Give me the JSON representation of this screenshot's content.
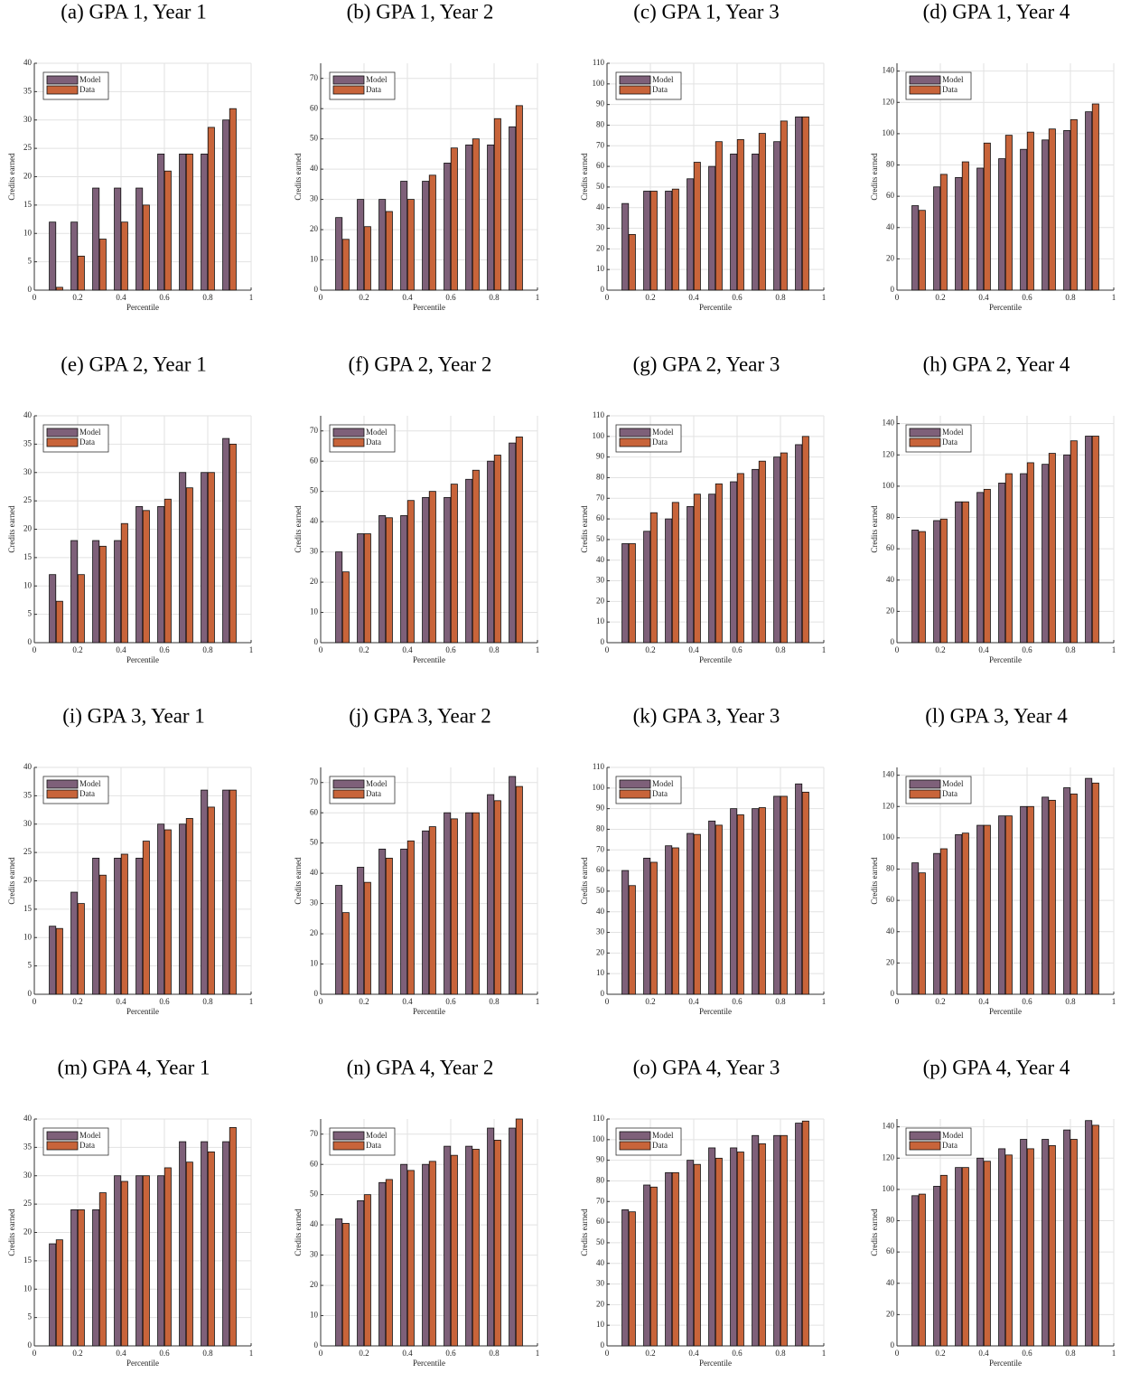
{
  "chart_data": [
    {
      "type": "bar",
      "title": "(a) GPA 1, Year 1",
      "xlabel": "Percentile",
      "ylabel": "Credits earned",
      "x": [
        0.1,
        0.2,
        0.3,
        0.4,
        0.5,
        0.6,
        0.7,
        0.8,
        0.9
      ],
      "series": [
        {
          "name": "Model",
          "color": "#7e6079",
          "values": [
            12,
            12,
            18,
            18,
            18,
            24,
            24,
            24,
            30
          ]
        },
        {
          "name": "Data",
          "color": "#c8643a",
          "values": [
            0.5,
            6,
            9,
            12,
            15,
            21,
            24,
            28.7,
            32
          ]
        }
      ],
      "xlim": [
        0,
        1
      ],
      "xticks": [
        0,
        0.2,
        0.4,
        0.6,
        0.8,
        1
      ],
      "ylim": [
        0,
        40
      ],
      "yticks": [
        0,
        5,
        10,
        15,
        20,
        25,
        30,
        35,
        40
      ],
      "grid": true,
      "legend": "upper left"
    },
    {
      "type": "bar",
      "title": "(b) GPA 1, Year 2",
      "xlabel": "Percentile",
      "ylabel": "Credits earned",
      "x": [
        0.1,
        0.2,
        0.3,
        0.4,
        0.5,
        0.6,
        0.7,
        0.8,
        0.9
      ],
      "series": [
        {
          "name": "Model",
          "color": "#7e6079",
          "values": [
            24,
            30,
            30,
            36,
            36,
            42,
            48,
            48,
            54
          ]
        },
        {
          "name": "Data",
          "color": "#c8643a",
          "values": [
            16.8,
            21,
            26,
            30,
            38,
            47,
            50,
            56.7,
            61
          ]
        }
      ],
      "xlim": [
        0,
        1
      ],
      "xticks": [
        0,
        0.2,
        0.4,
        0.6,
        0.8,
        1
      ],
      "ylim": [
        0,
        75
      ],
      "yticks": [
        0,
        10,
        20,
        30,
        40,
        50,
        60,
        70
      ],
      "grid": true,
      "legend": "upper left"
    },
    {
      "type": "bar",
      "title": "(c) GPA 1, Year 3",
      "xlabel": "Percentile",
      "ylabel": "Credits earned",
      "x": [
        0.1,
        0.2,
        0.3,
        0.4,
        0.5,
        0.6,
        0.7,
        0.8,
        0.9
      ],
      "series": [
        {
          "name": "Model",
          "color": "#7e6079",
          "values": [
            42,
            48,
            48,
            54,
            60,
            66,
            66,
            72,
            84
          ]
        },
        {
          "name": "Data",
          "color": "#c8643a",
          "values": [
            27,
            48,
            49,
            62,
            72,
            73,
            76,
            82,
            84
          ]
        }
      ],
      "xlim": [
        0,
        1
      ],
      "xticks": [
        0,
        0.2,
        0.4,
        0.6,
        0.8,
        1
      ],
      "ylim": [
        0,
        110
      ],
      "yticks": [
        0,
        10,
        20,
        30,
        40,
        50,
        60,
        70,
        80,
        90,
        100,
        110
      ],
      "grid": true,
      "legend": "upper left"
    },
    {
      "type": "bar",
      "title": "(d) GPA 1, Year 4",
      "xlabel": "Percentile",
      "ylabel": "Credits earned",
      "x": [
        0.1,
        0.2,
        0.3,
        0.4,
        0.5,
        0.6,
        0.7,
        0.8,
        0.9
      ],
      "series": [
        {
          "name": "Model",
          "color": "#7e6079",
          "values": [
            54,
            66,
            72,
            78,
            84,
            90,
            96,
            102,
            114
          ]
        },
        {
          "name": "Data",
          "color": "#c8643a",
          "values": [
            51,
            74,
            82,
            94,
            99,
            101,
            103,
            109,
            119
          ]
        }
      ],
      "xlim": [
        0,
        1
      ],
      "xticks": [
        0,
        0.2,
        0.4,
        0.6,
        0.8,
        1
      ],
      "ylim": [
        0,
        145
      ],
      "yticks": [
        0,
        20,
        40,
        60,
        80,
        100,
        120,
        140
      ],
      "grid": true,
      "legend": "upper left"
    },
    {
      "type": "bar",
      "title": "(e) GPA 2, Year 1",
      "xlabel": "Percentile",
      "ylabel": "Credits earned",
      "x": [
        0.1,
        0.2,
        0.3,
        0.4,
        0.5,
        0.6,
        0.7,
        0.8,
        0.9
      ],
      "series": [
        {
          "name": "Model",
          "color": "#7e6079",
          "values": [
            12,
            18,
            18,
            18,
            24,
            24,
            30,
            30,
            36
          ]
        },
        {
          "name": "Data",
          "color": "#c8643a",
          "values": [
            7.3,
            12,
            17,
            21,
            23.3,
            25.3,
            27.3,
            30,
            35
          ]
        }
      ],
      "xlim": [
        0,
        1
      ],
      "xticks": [
        0,
        0.2,
        0.4,
        0.6,
        0.8,
        1
      ],
      "ylim": [
        0,
        40
      ],
      "yticks": [
        0,
        5,
        10,
        15,
        20,
        25,
        30,
        35,
        40
      ],
      "grid": true,
      "legend": "upper left"
    },
    {
      "type": "bar",
      "title": "(f) GPA 2, Year 2",
      "xlabel": "Percentile",
      "ylabel": "Credits earned",
      "x": [
        0.1,
        0.2,
        0.3,
        0.4,
        0.5,
        0.6,
        0.7,
        0.8,
        0.9
      ],
      "series": [
        {
          "name": "Model",
          "color": "#7e6079",
          "values": [
            30,
            36,
            42,
            42,
            48,
            48,
            54,
            60,
            66
          ]
        },
        {
          "name": "Data",
          "color": "#c8643a",
          "values": [
            23.4,
            36,
            41.3,
            47,
            50,
            52.4,
            57,
            62,
            68
          ]
        }
      ],
      "xlim": [
        0,
        1
      ],
      "xticks": [
        0,
        0.2,
        0.4,
        0.6,
        0.8,
        1
      ],
      "ylim": [
        0,
        75
      ],
      "yticks": [
        0,
        10,
        20,
        30,
        40,
        50,
        60,
        70
      ],
      "grid": true,
      "legend": "upper left"
    },
    {
      "type": "bar",
      "title": "(g) GPA 2, Year 3",
      "xlabel": "Percentile",
      "ylabel": "Credits earned",
      "x": [
        0.1,
        0.2,
        0.3,
        0.4,
        0.5,
        0.6,
        0.7,
        0.8,
        0.9
      ],
      "series": [
        {
          "name": "Model",
          "color": "#7e6079",
          "values": [
            48,
            54,
            60,
            66,
            72,
            78,
            84,
            90,
            96
          ]
        },
        {
          "name": "Data",
          "color": "#c8643a",
          "values": [
            48,
            63,
            68,
            72,
            77,
            82,
            88,
            92,
            100
          ]
        }
      ],
      "xlim": [
        0,
        1
      ],
      "xticks": [
        0,
        0.2,
        0.4,
        0.6,
        0.8,
        1
      ],
      "ylim": [
        0,
        110
      ],
      "yticks": [
        0,
        10,
        20,
        30,
        40,
        50,
        60,
        70,
        80,
        90,
        100,
        110
      ],
      "grid": true,
      "legend": "upper left"
    },
    {
      "type": "bar",
      "title": "(h) GPA 2, Year 4",
      "xlabel": "Percentile",
      "ylabel": "Credits earned",
      "x": [
        0.1,
        0.2,
        0.3,
        0.4,
        0.5,
        0.6,
        0.7,
        0.8,
        0.9
      ],
      "series": [
        {
          "name": "Model",
          "color": "#7e6079",
          "values": [
            72,
            78,
            90,
            96,
            102,
            108,
            114,
            120,
            132
          ]
        },
        {
          "name": "Data",
          "color": "#c8643a",
          "values": [
            71,
            79,
            90,
            98,
            108,
            115,
            121,
            129,
            132
          ]
        }
      ],
      "xlim": [
        0,
        1
      ],
      "xticks": [
        0,
        0.2,
        0.4,
        0.6,
        0.8,
        1
      ],
      "ylim": [
        0,
        145
      ],
      "yticks": [
        0,
        20,
        40,
        60,
        80,
        100,
        120,
        140
      ],
      "grid": true,
      "legend": "upper left"
    },
    {
      "type": "bar",
      "title": "(i) GPA 3, Year 1",
      "xlabel": "Percentile",
      "ylabel": "Credits earned",
      "x": [
        0.1,
        0.2,
        0.3,
        0.4,
        0.5,
        0.6,
        0.7,
        0.8,
        0.9
      ],
      "series": [
        {
          "name": "Model",
          "color": "#7e6079",
          "values": [
            12,
            18,
            24,
            24,
            24,
            30,
            30,
            36,
            36
          ]
        },
        {
          "name": "Data",
          "color": "#c8643a",
          "values": [
            11.6,
            16,
            21,
            24.7,
            27,
            29,
            31,
            33,
            36
          ]
        }
      ],
      "xlim": [
        0,
        1
      ],
      "xticks": [
        0,
        0.2,
        0.4,
        0.6,
        0.8,
        1
      ],
      "ylim": [
        0,
        40
      ],
      "yticks": [
        0,
        5,
        10,
        15,
        20,
        25,
        30,
        35,
        40
      ],
      "grid": true,
      "legend": "upper left"
    },
    {
      "type": "bar",
      "title": "(j) GPA 3, Year 2",
      "xlabel": "Percentile",
      "ylabel": "Credits earned",
      "x": [
        0.1,
        0.2,
        0.3,
        0.4,
        0.5,
        0.6,
        0.7,
        0.8,
        0.9
      ],
      "series": [
        {
          "name": "Model",
          "color": "#7e6079",
          "values": [
            36,
            42,
            48,
            48,
            54,
            60,
            60,
            66,
            72
          ]
        },
        {
          "name": "Data",
          "color": "#c8643a",
          "values": [
            27,
            37,
            45,
            50.7,
            55.4,
            58,
            60,
            64,
            68.7
          ]
        }
      ],
      "xlim": [
        0,
        1
      ],
      "xticks": [
        0,
        0.2,
        0.4,
        0.6,
        0.8,
        1
      ],
      "ylim": [
        0,
        75
      ],
      "yticks": [
        0,
        10,
        20,
        30,
        40,
        50,
        60,
        70
      ],
      "grid": true,
      "legend": "upper left"
    },
    {
      "type": "bar",
      "title": "(k) GPA 3, Year 3",
      "xlabel": "Percentile",
      "ylabel": "Credits earned",
      "x": [
        0.1,
        0.2,
        0.3,
        0.4,
        0.5,
        0.6,
        0.7,
        0.8,
        0.9
      ],
      "series": [
        {
          "name": "Model",
          "color": "#7e6079",
          "values": [
            60,
            66,
            72,
            78,
            84,
            90,
            90,
            96,
            102
          ]
        },
        {
          "name": "Data",
          "color": "#c8643a",
          "values": [
            52.7,
            64,
            71,
            77.5,
            82,
            87,
            90.5,
            96,
            98
          ]
        }
      ],
      "xlim": [
        0,
        1
      ],
      "xticks": [
        0,
        0.2,
        0.4,
        0.6,
        0.8,
        1
      ],
      "ylim": [
        0,
        110
      ],
      "yticks": [
        0,
        10,
        20,
        30,
        40,
        50,
        60,
        70,
        80,
        90,
        100,
        110
      ],
      "grid": true,
      "legend": "upper left"
    },
    {
      "type": "bar",
      "title": "(l) GPA 3, Year 4",
      "xlabel": "Percentile",
      "ylabel": "Credits earned",
      "x": [
        0.1,
        0.2,
        0.3,
        0.4,
        0.5,
        0.6,
        0.7,
        0.8,
        0.9
      ],
      "series": [
        {
          "name": "Model",
          "color": "#7e6079",
          "values": [
            84,
            90,
            102,
            108,
            114,
            120,
            126,
            132,
            138
          ]
        },
        {
          "name": "Data",
          "color": "#c8643a",
          "values": [
            77.6,
            93,
            103,
            108,
            114,
            120,
            124,
            128,
            135
          ]
        }
      ],
      "xlim": [
        0,
        1
      ],
      "xticks": [
        0,
        0.2,
        0.4,
        0.6,
        0.8,
        1
      ],
      "ylim": [
        0,
        145
      ],
      "yticks": [
        0,
        20,
        40,
        60,
        80,
        100,
        120,
        140
      ],
      "grid": true,
      "legend": "upper left"
    },
    {
      "type": "bar",
      "title": "(m) GPA 4, Year 1",
      "xlabel": "Percentile",
      "ylabel": "Credits earned",
      "x": [
        0.1,
        0.2,
        0.3,
        0.4,
        0.5,
        0.6,
        0.7,
        0.8,
        0.9
      ],
      "series": [
        {
          "name": "Model",
          "color": "#7e6079",
          "values": [
            18,
            24,
            24,
            30,
            30,
            30,
            36,
            36,
            36
          ]
        },
        {
          "name": "Data",
          "color": "#c8643a",
          "values": [
            18.7,
            24,
            27,
            29,
            30,
            31.4,
            32.4,
            34.2,
            38.5
          ]
        }
      ],
      "xlim": [
        0,
        1
      ],
      "xticks": [
        0,
        0.2,
        0.4,
        0.6,
        0.8,
        1
      ],
      "ylim": [
        0,
        40
      ],
      "yticks": [
        0,
        5,
        10,
        15,
        20,
        25,
        30,
        35,
        40
      ],
      "grid": true,
      "legend": "upper left"
    },
    {
      "type": "bar",
      "title": "(n) GPA 4, Year 2",
      "xlabel": "Percentile",
      "ylabel": "Credits earned",
      "x": [
        0.1,
        0.2,
        0.3,
        0.4,
        0.5,
        0.6,
        0.7,
        0.8,
        0.9
      ],
      "series": [
        {
          "name": "Model",
          "color": "#7e6079",
          "values": [
            42,
            48,
            54,
            60,
            60,
            66,
            66,
            72,
            72
          ]
        },
        {
          "name": "Data",
          "color": "#c8643a",
          "values": [
            40.5,
            50,
            55,
            58,
            61,
            63,
            65,
            68,
            75
          ]
        }
      ],
      "xlim": [
        0,
        1
      ],
      "xticks": [
        0,
        0.2,
        0.4,
        0.6,
        0.8,
        1
      ],
      "ylim": [
        0,
        75
      ],
      "yticks": [
        0,
        10,
        20,
        30,
        40,
        50,
        60,
        70
      ],
      "grid": true,
      "legend": "upper left"
    },
    {
      "type": "bar",
      "title": "(o) GPA 4, Year 3",
      "xlabel": "Percentile",
      "ylabel": "Credits earned",
      "x": [
        0.1,
        0.2,
        0.3,
        0.4,
        0.5,
        0.6,
        0.7,
        0.8,
        0.9
      ],
      "series": [
        {
          "name": "Model",
          "color": "#7e6079",
          "values": [
            66,
            78,
            84,
            90,
            96,
            96,
            102,
            102,
            108
          ]
        },
        {
          "name": "Data",
          "color": "#c8643a",
          "values": [
            65,
            77,
            84,
            88,
            91,
            94,
            98,
            102,
            109
          ]
        }
      ],
      "xlim": [
        0,
        1
      ],
      "xticks": [
        0,
        0.2,
        0.4,
        0.6,
        0.8,
        1
      ],
      "ylim": [
        0,
        110
      ],
      "yticks": [
        0,
        10,
        20,
        30,
        40,
        50,
        60,
        70,
        80,
        90,
        100,
        110
      ],
      "grid": true,
      "legend": "upper left"
    },
    {
      "type": "bar",
      "title": "(p) GPA 4, Year 4",
      "xlabel": "Percentile",
      "ylabel": "Credits earned",
      "x": [
        0.1,
        0.2,
        0.3,
        0.4,
        0.5,
        0.6,
        0.7,
        0.8,
        0.9
      ],
      "series": [
        {
          "name": "Model",
          "color": "#7e6079",
          "values": [
            96,
            102,
            114,
            120,
            126,
            132,
            132,
            138,
            144
          ]
        },
        {
          "name": "Data",
          "color": "#c8643a",
          "values": [
            97,
            109,
            114,
            118,
            122,
            126,
            128,
            132,
            141
          ]
        }
      ],
      "xlim": [
        0,
        1
      ],
      "xticks": [
        0,
        0.2,
        0.4,
        0.6,
        0.8,
        1
      ],
      "ylim": [
        0,
        145
      ],
      "yticks": [
        0,
        20,
        40,
        60,
        80,
        100,
        120,
        140
      ],
      "grid": true,
      "legend": "upper left"
    }
  ]
}
